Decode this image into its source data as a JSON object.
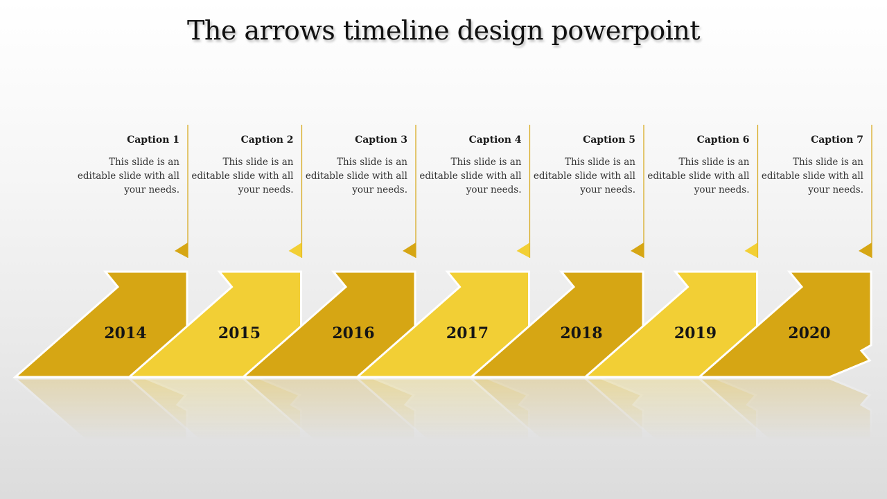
{
  "title": "The arrows timeline design powerpoint",
  "colors": {
    "dark_gold": "#D6A614",
    "light_gold": "#F2CF35",
    "outline": "#ffffff"
  },
  "steps": [
    {
      "year": "2014",
      "caption": "Caption 1",
      "text": "This slide is an editable slide with all your needs.",
      "tone": "dark"
    },
    {
      "year": "2015",
      "caption": "Caption 2",
      "text": "This slide is an editable slide with all your needs.",
      "tone": "light"
    },
    {
      "year": "2016",
      "caption": "Caption 3",
      "text": "This slide is an editable slide with all your needs.",
      "tone": "dark"
    },
    {
      "year": "2017",
      "caption": "Caption 4",
      "text": "This slide is an editable slide with all your needs.",
      "tone": "light"
    },
    {
      "year": "2018",
      "caption": "Caption 5",
      "text": "This slide is an editable slide with all your needs.",
      "tone": "dark"
    },
    {
      "year": "2019",
      "caption": "Caption 6",
      "text": "This slide is an editable slide with all your needs.",
      "tone": "light"
    },
    {
      "year": "2020",
      "caption": "Caption 7",
      "text": "This slide is an editable slide with all your needs.",
      "tone": "dark"
    }
  ]
}
